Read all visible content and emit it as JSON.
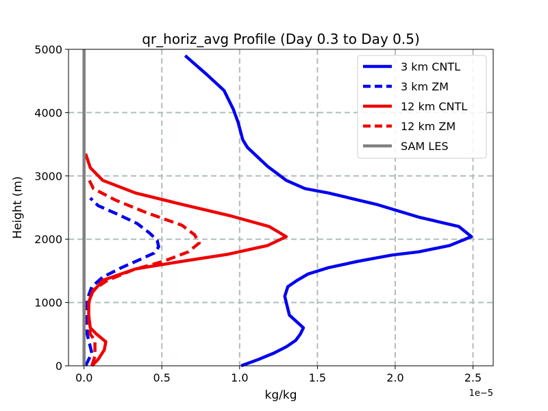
{
  "chart_data": {
    "type": "line",
    "title": "qr_horiz_avg Profile (Day 0.3 to Day 0.5)",
    "xlabel": "kg/kg",
    "ylabel": "Height (m)",
    "x_offset_label": "1e−5",
    "xlim": [
      -1e-06,
      2.63e-05
    ],
    "ylim": [
      0,
      5000
    ],
    "xticks": [
      0,
      5e-06,
      1e-05,
      1.5e-05,
      2e-05,
      2.5e-05
    ],
    "xtick_labels": [
      "0.0",
      "0.5",
      "1.0",
      "1.5",
      "2.0",
      "2.5"
    ],
    "yticks": [
      0,
      1000,
      2000,
      3000,
      4000,
      5000
    ],
    "ytick_labels": [
      "0",
      "1000",
      "2000",
      "3000",
      "4000",
      "5000"
    ],
    "grid": true,
    "legend_position": "upper-right",
    "series": [
      {
        "name": "3 km CNTL",
        "color": "#0000ee",
        "dash": "solid",
        "points": [
          [
            1.01e-05,
            0
          ],
          [
            1.12e-05,
            100
          ],
          [
            1.22e-05,
            200
          ],
          [
            1.3e-05,
            300
          ],
          [
            1.36e-05,
            400
          ],
          [
            1.39e-05,
            500
          ],
          [
            1.41e-05,
            600
          ],
          [
            1.32e-05,
            800
          ],
          [
            1.3e-05,
            1000
          ],
          [
            1.29e-05,
            1100
          ],
          [
            1.31e-05,
            1250
          ],
          [
            1.37e-05,
            1350
          ],
          [
            1.44e-05,
            1450
          ],
          [
            1.57e-05,
            1550
          ],
          [
            1.76e-05,
            1650
          ],
          [
            1.98e-05,
            1750
          ],
          [
            2.15e-05,
            1800
          ],
          [
            2.35e-05,
            1900
          ],
          [
            2.49e-05,
            2040
          ],
          [
            2.41e-05,
            2200
          ],
          [
            2.15e-05,
            2350
          ],
          [
            1.88e-05,
            2550
          ],
          [
            1.57e-05,
            2730
          ],
          [
            1.42e-05,
            2800
          ],
          [
            1.3e-05,
            2930
          ],
          [
            1.18e-05,
            3150
          ],
          [
            1.05e-05,
            3450
          ],
          [
            1.02e-05,
            3570
          ],
          [
            9.9e-06,
            3850
          ],
          [
            9.6e-06,
            4050
          ],
          [
            9e-06,
            4350
          ],
          [
            7.9e-06,
            4600
          ],
          [
            6.5e-06,
            4900
          ]
        ]
      },
      {
        "name": "3 km ZM",
        "color": "#0000ee",
        "dash": "dashed",
        "points": [
          [
            1e-07,
            0
          ],
          [
            3e-07,
            100
          ],
          [
            5e-07,
            200
          ],
          [
            4e-07,
            300
          ],
          [
            2e-07,
            500
          ],
          [
            2e-07,
            800
          ],
          [
            2e-07,
            1050
          ],
          [
            5e-07,
            1250
          ],
          [
            1.2e-06,
            1400
          ],
          [
            2.4e-06,
            1550
          ],
          [
            3.6e-06,
            1680
          ],
          [
            4.5e-06,
            1780
          ],
          [
            4.8e-06,
            1880
          ],
          [
            4.7e-06,
            1980
          ],
          [
            4.2e-06,
            2100
          ],
          [
            3.4e-06,
            2250
          ],
          [
            2.1e-06,
            2400
          ],
          [
            9e-07,
            2530
          ],
          [
            4e-07,
            2650
          ]
        ]
      },
      {
        "name": "12 km CNTL",
        "color": "#ee0000",
        "dash": "solid",
        "points": [
          [
            5e-07,
            0
          ],
          [
            9e-07,
            100
          ],
          [
            1.3e-06,
            250
          ],
          [
            1.4e-06,
            380
          ],
          [
            8e-07,
            500
          ],
          [
            4e-07,
            600
          ],
          [
            3e-07,
            800
          ],
          [
            3e-07,
            1000
          ],
          [
            5e-07,
            1150
          ],
          [
            1.2e-06,
            1350
          ],
          [
            3.3e-06,
            1530
          ],
          [
            6.3e-06,
            1650
          ],
          [
            9.2e-06,
            1760
          ],
          [
            1.18e-05,
            1900
          ],
          [
            1.3e-05,
            2040
          ],
          [
            1.19e-05,
            2200
          ],
          [
            9.4e-06,
            2370
          ],
          [
            6.3e-06,
            2550
          ],
          [
            3.3e-06,
            2730
          ],
          [
            1.2e-06,
            2930
          ],
          [
            4e-07,
            3130
          ],
          [
            1e-07,
            3350
          ]
        ]
      },
      {
        "name": "12 km ZM",
        "color": "#ee0000",
        "dash": "dashed",
        "points": [
          [
            5e-07,
            0
          ],
          [
            7e-07,
            150
          ],
          [
            7e-07,
            400
          ],
          [
            4e-07,
            500
          ],
          [
            3e-07,
            700
          ],
          [
            3e-07,
            1000
          ],
          [
            6e-07,
            1200
          ],
          [
            1.5e-06,
            1350
          ],
          [
            3.2e-06,
            1520
          ],
          [
            5.1e-06,
            1650
          ],
          [
            6.7e-06,
            1800
          ],
          [
            7.4e-06,
            1940
          ],
          [
            7.1e-06,
            2070
          ],
          [
            6.3e-06,
            2220
          ],
          [
            4e-06,
            2420
          ],
          [
            2e-06,
            2620
          ],
          [
            6e-07,
            2800
          ],
          [
            3e-07,
            2950
          ]
        ]
      },
      {
        "name": "SAM LES",
        "color": "#808080",
        "dash": "solid",
        "points": [
          [
            0,
            0
          ],
          [
            0,
            5000
          ]
        ]
      }
    ]
  }
}
